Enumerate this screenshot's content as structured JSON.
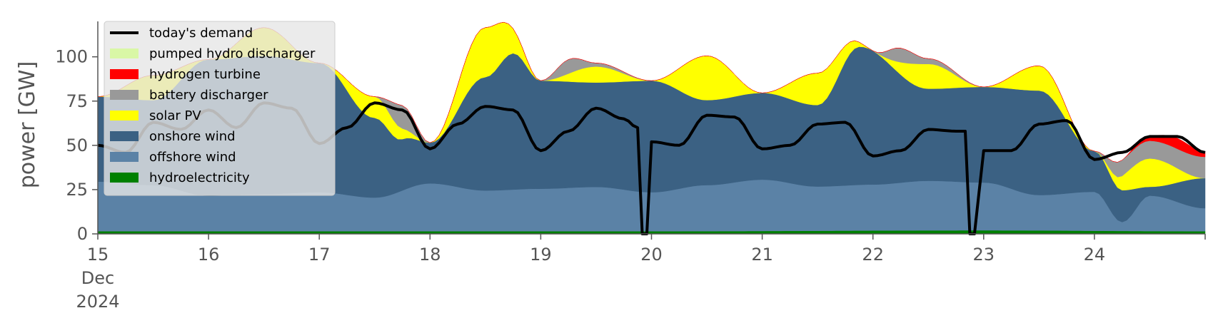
{
  "chart_data": {
    "type": "area",
    "title": "",
    "xlabel": "",
    "ylabel": "power [GW]",
    "ylim": [
      0,
      120
    ],
    "xlim": [
      "2024-12-15T00:00",
      "2024-12-25T00:00"
    ],
    "grid": false,
    "legend_position": "top-left",
    "y_ticks": [
      0,
      25,
      50,
      75,
      100
    ],
    "x_ticks": [
      {
        "date": "2024-12-15",
        "label": "15",
        "sub": [
          "Dec",
          "2024"
        ]
      },
      {
        "date": "2024-12-16",
        "label": "16"
      },
      {
        "date": "2024-12-17",
        "label": "17"
      },
      {
        "date": "2024-12-18",
        "label": "18"
      },
      {
        "date": "2024-12-19",
        "label": "19"
      },
      {
        "date": "2024-12-20",
        "label": "20"
      },
      {
        "date": "2024-12-21",
        "label": "21"
      },
      {
        "date": "2024-12-22",
        "label": "22"
      },
      {
        "date": "2024-12-23",
        "label": "23"
      },
      {
        "date": "2024-12-24",
        "label": "24"
      }
    ],
    "legend": [
      {
        "label": "today's demand",
        "color": "#000000",
        "kind": "line"
      },
      {
        "label": "pumped hydro discharger",
        "color": "#d9f7a6",
        "kind": "patch"
      },
      {
        "label": "hydrogen turbine",
        "color": "#ff0000",
        "kind": "patch"
      },
      {
        "label": "battery discharger",
        "color": "#999999",
        "kind": "patch"
      },
      {
        "label": "solar PV",
        "color": "#ffff00",
        "kind": "patch"
      },
      {
        "label": "onshore wind",
        "color": "#3b6183",
        "kind": "patch"
      },
      {
        "label": "offshore wind",
        "color": "#5b82a6",
        "kind": "patch"
      },
      {
        "label": "hydroelectricity",
        "color": "#008000",
        "kind": "patch"
      }
    ],
    "series": [
      {
        "name": "hydroelectricity",
        "color": "#008000",
        "x": [
          "2024-12-15T00:00",
          "2024-12-20T00:00",
          "2024-12-23T00:00",
          "2024-12-25T00:00"
        ],
        "values": [
          1.5,
          1.5,
          2,
          1.5
        ]
      },
      {
        "name": "offshore wind",
        "color": "#5b82a6",
        "x": [
          "2024-12-15T00:00",
          "2024-12-15T12:00",
          "2024-12-16T00:00",
          "2024-12-16T12:00",
          "2024-12-17T00:00",
          "2024-12-17T12:00",
          "2024-12-18T00:00",
          "2024-12-18T12:00",
          "2024-12-19T00:00",
          "2024-12-19T12:00",
          "2024-12-20T00:00",
          "2024-12-20T12:00",
          "2024-12-21T00:00",
          "2024-12-21T12:00",
          "2024-12-22T00:00",
          "2024-12-22T12:00",
          "2024-12-23T00:00",
          "2024-12-23T12:00",
          "2024-12-24T00:00",
          "2024-12-24T06:00",
          "2024-12-24T12:00",
          "2024-12-25T00:00"
        ],
        "values": [
          28,
          26,
          20,
          21,
          22,
          19,
          27,
          23,
          24,
          25,
          22,
          26,
          29,
          25,
          26,
          28,
          27,
          20,
          22,
          5,
          20,
          13
        ]
      },
      {
        "name": "onshore wind",
        "color": "#3b6183",
        "x": [
          "2024-12-15T00:00",
          "2024-12-15T12:00",
          "2024-12-16T00:00",
          "2024-12-16T12:00",
          "2024-12-17T00:00",
          "2024-12-17T12:00",
          "2024-12-17T18:00",
          "2024-12-18T00:00",
          "2024-12-18T12:00",
          "2024-12-18T18:00",
          "2024-12-19T00:00",
          "2024-12-19T12:00",
          "2024-12-20T00:00",
          "2024-12-20T12:00",
          "2024-12-21T00:00",
          "2024-12-21T12:00",
          "2024-12-21T21:00",
          "2024-12-22T12:00",
          "2024-12-23T00:00",
          "2024-12-23T12:00",
          "2024-12-24T00:00",
          "2024-12-24T06:00",
          "2024-12-24T12:00",
          "2024-12-25T00:00"
        ],
        "values": [
          48,
          48,
          77,
          78,
          73,
          45,
          29,
          23,
          64,
          77,
          61,
          59,
          63,
          48,
          49,
          46,
          78,
          52,
          54,
          59,
          23,
          18,
          5,
          17
        ]
      },
      {
        "name": "solar PV",
        "color": "#ffff00",
        "x": [
          "2024-12-15T00:00",
          "2024-12-15T12:00",
          "2024-12-16T00:00",
          "2024-12-16T12:00",
          "2024-12-17T00:00",
          "2024-12-17T12:00",
          "2024-12-18T00:00",
          "2024-12-18T12:00",
          "2024-12-19T00:00",
          "2024-12-19T12:00",
          "2024-12-20T00:00",
          "2024-12-20T12:00",
          "2024-12-21T00:00",
          "2024-12-21T12:00",
          "2024-12-22T00:00",
          "2024-12-22T12:00",
          "2024-12-23T00:00",
          "2024-12-23T12:00",
          "2024-12-24T00:00",
          "2024-12-24T12:00",
          "2024-12-25T00:00"
        ],
        "values": [
          0,
          14,
          0,
          16,
          0,
          12,
          0,
          28,
          0,
          9,
          0,
          25,
          0,
          18,
          0,
          14,
          0,
          14,
          0,
          16,
          0
        ]
      },
      {
        "name": "battery discharger",
        "color": "#999999",
        "x": [
          "2024-12-15T00:00",
          "2024-12-17T12:00",
          "2024-12-17T18:00",
          "2024-12-18T00:00",
          "2024-12-19T00:00",
          "2024-12-19T06:00",
          "2024-12-19T12:00",
          "2024-12-20T00:00",
          "2024-12-22T00:00",
          "2024-12-22T06:00",
          "2024-12-22T12:00",
          "2024-12-23T00:00",
          "2024-12-24T00:00",
          "2024-12-24T06:00",
          "2024-12-24T12:00",
          "2024-12-25T00:00"
        ],
        "values": [
          0,
          0,
          13,
          0,
          0,
          8,
          2,
          0,
          0,
          8,
          3,
          0,
          0,
          9,
          10,
          12
        ]
      },
      {
        "name": "hydrogen turbine",
        "color": "#ff0000",
        "x": [
          "2024-12-15T00:00",
          "2024-12-24T06:00",
          "2024-12-24T12:00",
          "2024-12-24T18:00",
          "2024-12-25T00:00"
        ],
        "values": [
          0,
          0,
          3,
          6,
          3
        ]
      },
      {
        "name": "pumped hydro discharger",
        "color": "#d9f7a6",
        "x": [
          "2024-12-15T00:00",
          "2024-12-25T00:00"
        ],
        "values": [
          0,
          0
        ]
      },
      {
        "name": "today's demand",
        "color": "#000000",
        "kind": "line",
        "x": [
          "2024-12-15T00:00",
          "2024-12-15T06:00",
          "2024-12-15T12:00",
          "2024-12-15T18:00",
          "2024-12-16T00:00",
          "2024-12-16T06:00",
          "2024-12-16T12:00",
          "2024-12-16T18:00",
          "2024-12-17T00:00",
          "2024-12-17T06:00",
          "2024-12-17T12:00",
          "2024-12-17T18:00",
          "2024-12-18T00:00",
          "2024-12-18T06:00",
          "2024-12-18T12:00",
          "2024-12-18T18:00",
          "2024-12-19T00:00",
          "2024-12-19T06:00",
          "2024-12-19T12:00",
          "2024-12-19T18:00",
          "2024-12-19T21:00",
          "2024-12-19T22:00",
          "2024-12-19T23:00",
          "2024-12-20T00:00",
          "2024-12-20T06:00",
          "2024-12-20T12:00",
          "2024-12-20T18:00",
          "2024-12-21T00:00",
          "2024-12-21T06:00",
          "2024-12-21T12:00",
          "2024-12-21T18:00",
          "2024-12-22T00:00",
          "2024-12-22T06:00",
          "2024-12-22T12:00",
          "2024-12-22T18:00",
          "2024-12-22T20:00",
          "2024-12-22T21:00",
          "2024-12-22T22:00",
          "2024-12-23T00:00",
          "2024-12-23T06:00",
          "2024-12-23T12:00",
          "2024-12-23T18:00",
          "2024-12-24T00:00",
          "2024-12-24T06:00",
          "2024-12-24T12:00",
          "2024-12-24T18:00",
          "2024-12-25T00:00"
        ],
        "values": [
          50,
          46,
          63,
          59,
          70,
          60,
          74,
          71,
          51,
          60,
          74,
          70,
          48,
          62,
          72,
          70,
          47,
          58,
          71,
          65,
          60,
          0,
          0,
          52,
          50,
          67,
          66,
          48,
          50,
          62,
          63,
          44,
          47,
          59,
          58,
          58,
          0,
          0,
          47,
          47,
          62,
          64,
          42,
          46,
          55,
          55,
          46
        ]
      }
    ]
  }
}
